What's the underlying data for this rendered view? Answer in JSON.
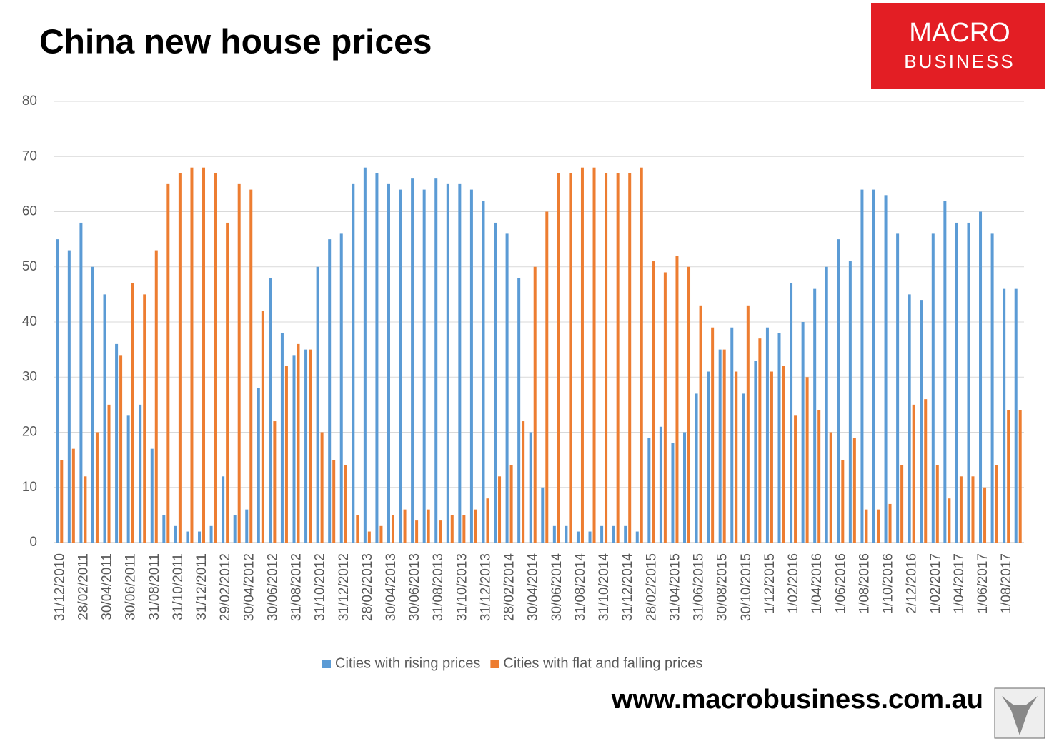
{
  "chart_data": {
    "type": "bar",
    "title": "China new house prices",
    "logo": {
      "line1": "MACRO",
      "line2": "BUSINESS"
    },
    "website": "www.macrobusiness.com.au",
    "categories": [
      "31/12/2010",
      null,
      "28/02/2011",
      null,
      "30/04/2011",
      null,
      "30/06/2011",
      null,
      "31/08/2011",
      null,
      "31/10/2011",
      null,
      "31/12/2011",
      null,
      "29/02/2012",
      null,
      "30/04/2012",
      null,
      "30/06/2012",
      null,
      "31/08/2012",
      null,
      "31/10/2012",
      null,
      "31/12/2012",
      null,
      "28/02/2013",
      null,
      "30/04/2013",
      null,
      "30/06/2013",
      null,
      "31/08/2013",
      null,
      "31/10/2013",
      null,
      "31/12/2013",
      null,
      "28/02/2014",
      null,
      "30/04/2014",
      null,
      "30/06/2014",
      null,
      "31/08/2014",
      null,
      "31/10/2014",
      null,
      "31/12/2014",
      null,
      "28/02/2015",
      null,
      "31/04/2015",
      null,
      "31/06/2015",
      null,
      "30/08/2015",
      null,
      "30/10/2015",
      null,
      "1/12/2015",
      null,
      "1/02/2016",
      null,
      "1/04/2016",
      null,
      "1/06/2016",
      null,
      "1/08/2016",
      null,
      "1/10/2016",
      null,
      "2/12/2016",
      null,
      "1/02/2017",
      null,
      "1/04/2017",
      null,
      "1/06/2017",
      null,
      "1/08/2017",
      null
    ],
    "series": [
      {
        "name": "Cities with rising prices",
        "color": "#5b9bd5",
        "values": [
          55,
          53,
          58,
          50,
          45,
          36,
          23,
          25,
          17,
          5,
          3,
          2,
          2,
          3,
          12,
          5,
          6,
          28,
          48,
          38,
          34,
          35,
          50,
          55,
          56,
          65,
          68,
          67,
          65,
          64,
          66,
          64,
          66,
          65,
          65,
          64,
          62,
          58,
          56,
          48,
          20,
          10,
          3,
          3,
          2,
          2,
          3,
          3,
          3,
          2,
          19,
          21,
          18,
          20,
          27,
          31,
          35,
          39,
          27,
          33,
          39,
          38,
          47,
          40,
          46,
          50,
          55,
          51,
          64,
          64,
          63,
          56,
          45,
          44,
          56,
          62,
          58,
          58,
          60,
          56,
          46,
          46
        ]
      },
      {
        "name": "Cities with flat and falling prices",
        "color": "#ed7d31",
        "values": [
          15,
          17,
          12,
          20,
          25,
          34,
          47,
          45,
          53,
          65,
          67,
          68,
          68,
          67,
          58,
          65,
          64,
          42,
          22,
          32,
          36,
          35,
          20,
          15,
          14,
          5,
          2,
          3,
          5,
          6,
          4,
          6,
          4,
          5,
          5,
          6,
          8,
          12,
          14,
          22,
          50,
          60,
          67,
          67,
          68,
          68,
          67,
          67,
          67,
          68,
          51,
          49,
          52,
          50,
          43,
          39,
          35,
          31,
          43,
          37,
          31,
          32,
          23,
          30,
          24,
          20,
          15,
          19,
          6,
          6,
          7,
          14,
          25,
          26,
          14,
          8,
          12,
          12,
          10,
          14,
          24,
          24
        ]
      }
    ],
    "ylim": [
      0,
      80
    ],
    "yticks": [
      0,
      10,
      20,
      30,
      40,
      50,
      60,
      70,
      80
    ],
    "grid": true,
    "legend": "bottom"
  }
}
